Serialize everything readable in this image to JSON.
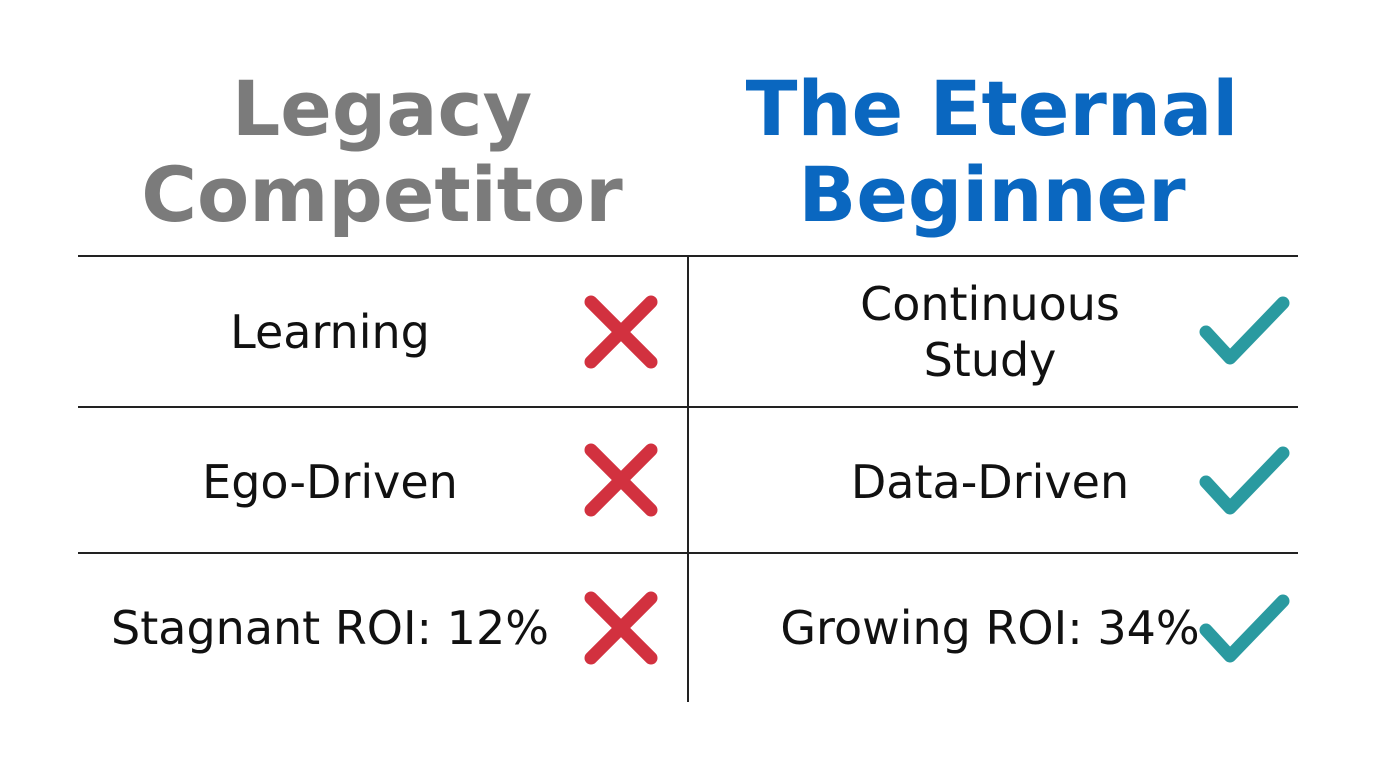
{
  "columns": [
    {
      "title": "Legacy Competitor",
      "rows": [
        "Learning",
        "Ego-Driven",
        "Stagnant ROI: 12%"
      ]
    },
    {
      "title": "The Eternal Beginner",
      "rows": [
        "Continuous Study",
        "Data-Driven",
        "Growing ROI: 34%"
      ]
    }
  ]
}
